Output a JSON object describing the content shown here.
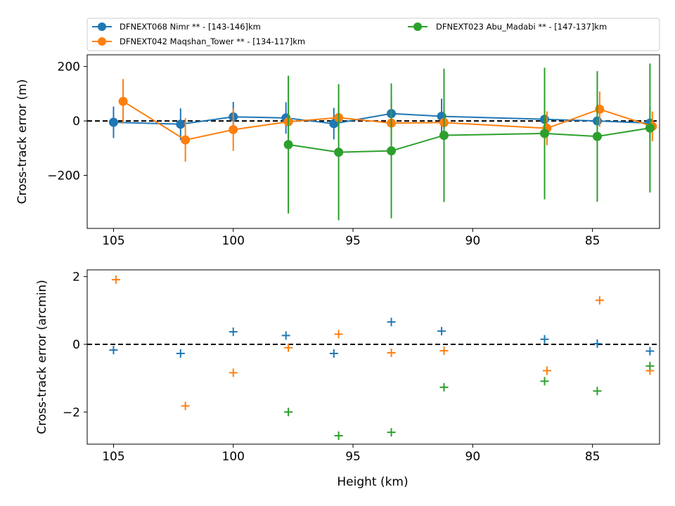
{
  "legend": {
    "entries": [
      {
        "label": "DFNEXT068 Nimr **  - [143-146]km",
        "color": "#1f77b4"
      },
      {
        "label": "DFNEXT042 Maqshan_Tower **  - [134-117]km",
        "color": "#ff7f0e"
      },
      {
        "label": "DFNEXT023 Abu_Madabi **  - [147-137]km",
        "color": "#2ca02c"
      }
    ],
    "placement": "top, outside plots, two columns"
  },
  "chart_data": [
    {
      "type": "line",
      "error_bars": true,
      "title": "",
      "xlabel": "",
      "ylabel": "Cross-track error (m)",
      "xlim": [
        106.1,
        82.2
      ],
      "ylim": [
        -395,
        243
      ],
      "x_inverted": true,
      "xticks": [
        105,
        100,
        95,
        90,
        85
      ],
      "xtick_labels": [
        "105",
        "100",
        "95",
        "90",
        "85"
      ],
      "yticks": [
        200,
        0,
        -200
      ],
      "ytick_labels": [
        "200",
        "0",
        "−200"
      ],
      "reference_line": {
        "y": 0,
        "style": "dashed",
        "color": "#000000"
      },
      "series": [
        {
          "name": "DFNEXT068 Nimr **  - [143-146]km",
          "color": "#1f77b4",
          "x": [
            105.0,
            102.2,
            100.0,
            97.8,
            95.8,
            93.4,
            91.3,
            87.0,
            84.8,
            82.6
          ],
          "y": [
            -5,
            -12,
            15,
            11,
            -10,
            27,
            17,
            6,
            0,
            -8
          ],
          "yerr": [
            58,
            58,
            55,
            58,
            58,
            58,
            65,
            68,
            65,
            60
          ]
        },
        {
          "name": "DFNEXT042 Maqshan_Tower **  - [134-117]km",
          "color": "#ff7f0e",
          "x": [
            104.6,
            102.0,
            100.0,
            97.7,
            95.6,
            93.4,
            91.2,
            86.9,
            84.7,
            82.5
          ],
          "y": [
            72,
            -70,
            -32,
            -3,
            12,
            -8,
            -6,
            -27,
            43,
            -20
          ],
          "yerr": [
            82,
            80,
            78,
            60,
            50,
            68,
            68,
            62,
            65,
            55
          ]
        },
        {
          "name": "DFNEXT023 Abu_Madabi **  - [147-137]km",
          "color": "#2ca02c",
          "x": [
            97.7,
            95.6,
            93.4,
            91.2,
            87.0,
            84.8,
            82.6
          ],
          "y": [
            -87,
            -115,
            -110,
            -53,
            -46,
            -57,
            -26
          ],
          "yerr": [
            253,
            250,
            248,
            245,
            242,
            240,
            237
          ]
        }
      ]
    },
    {
      "type": "scatter",
      "marker": "+",
      "title": "",
      "xlabel": "Height (km)",
      "ylabel": "Cross-track error (arcmin)",
      "xlim": [
        106.1,
        82.2
      ],
      "ylim": [
        -2.95,
        2.2
      ],
      "x_inverted": true,
      "xticks": [
        105,
        100,
        95,
        90,
        85
      ],
      "xtick_labels": [
        "105",
        "100",
        "95",
        "90",
        "85"
      ],
      "yticks": [
        2,
        0,
        -2
      ],
      "ytick_labels": [
        "2",
        "0",
        "−2"
      ],
      "reference_line": {
        "y": 0,
        "style": "dashed",
        "color": "#000000"
      },
      "series": [
        {
          "name": "DFNEXT068 Nimr **  - [143-146]km",
          "color": "#1f77b4",
          "x": [
            105.0,
            102.2,
            100.0,
            97.8,
            95.8,
            93.4,
            91.3,
            87.0,
            84.8,
            82.6
          ],
          "y": [
            -0.17,
            -0.27,
            0.37,
            0.26,
            -0.27,
            0.66,
            0.39,
            0.15,
            0.02,
            -0.2
          ]
        },
        {
          "name": "DFNEXT042 Maqshan_Tower **  - [134-117]km",
          "color": "#ff7f0e",
          "x": [
            104.9,
            102.0,
            100.0,
            97.7,
            95.6,
            93.4,
            91.2,
            86.9,
            84.7,
            82.6
          ],
          "y": [
            1.91,
            -1.82,
            -0.84,
            -0.1,
            0.3,
            -0.25,
            -0.19,
            -0.78,
            1.3,
            -0.78
          ]
        },
        {
          "name": "DFNEXT023 Abu_Madabi **  - [147-137]km",
          "color": "#2ca02c",
          "x": [
            97.7,
            95.6,
            93.4,
            91.2,
            87.0,
            84.8,
            82.6
          ],
          "y": [
            -2.0,
            -2.7,
            -2.6,
            -1.27,
            -1.09,
            -1.38,
            -0.64
          ]
        }
      ]
    }
  ]
}
